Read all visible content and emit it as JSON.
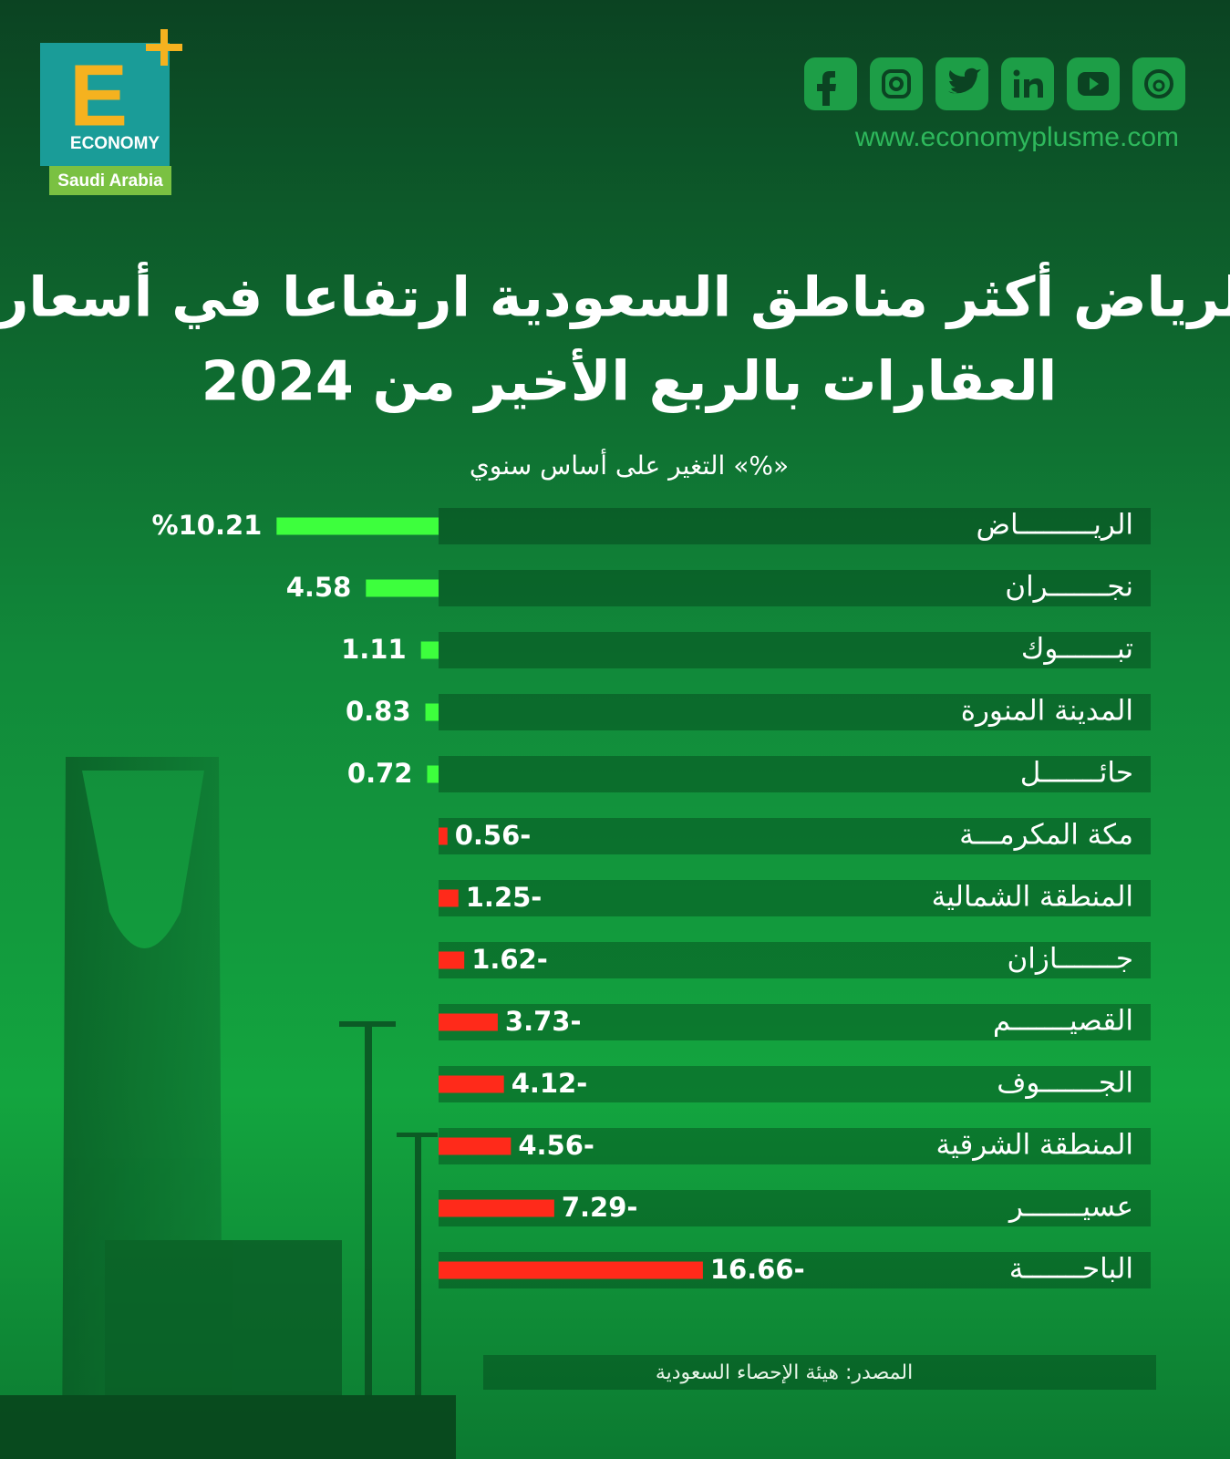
{
  "brand": {
    "letter": "E",
    "name": "ECONOMY",
    "region": "Saudi Arabia",
    "website": "www.economyplusme.com"
  },
  "chart_data": {
    "type": "bar",
    "orientation": "horizontal",
    "title": [
      "الرياض أكثر مناطق السعودية ارتفاعا في أسعار",
      "العقارات بالربع الأخير من 2024"
    ],
    "subtitle": "التغير على أساس سنوي «%»",
    "source": "المصدر: هيئة الإحصاء السعودية",
    "categories": [
      "الريـــــــــاض",
      "نجـــــــران",
      "تبـــــــوك",
      "المدينة المنورة",
      "حائـــــــل",
      "مكة المكرمـــة",
      "المنطقة الشمالية",
      "جـــــــازان",
      "القصيـــــــم",
      "الجـــــــوف",
      "المنطقة الشرقية",
      "عسيـــــــر",
      "الباحـــــــة"
    ],
    "values": [
      10.21,
      4.58,
      1.11,
      0.83,
      0.72,
      -0.56,
      -1.25,
      -1.62,
      -3.73,
      -4.12,
      -4.56,
      -7.29,
      -16.66
    ],
    "value_labels": [
      "%10.21",
      "4.58",
      "1.11",
      "0.83",
      "0.72",
      "0.56-",
      "1.25-",
      "1.62-",
      "3.73-",
      "4.12-",
      "4.56-",
      "7.29-",
      "16.66-"
    ],
    "positive_color": "#3dff3d",
    "negative_color": "#ff2a1a"
  }
}
